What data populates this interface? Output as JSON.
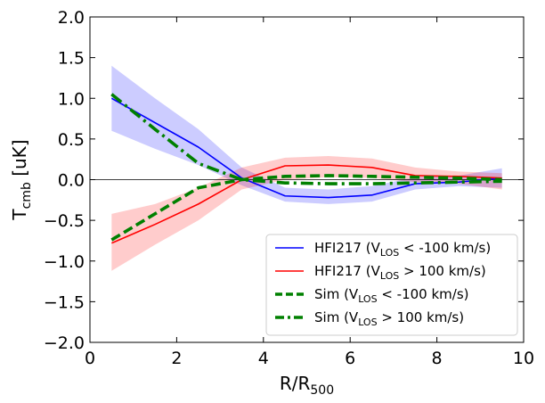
{
  "chart_data": {
    "type": "line",
    "title": "",
    "xlabel": {
      "base": "R/R",
      "sub": "500"
    },
    "ylabel": {
      "base": "T",
      "sub": "cmb",
      "rest": " [uK]"
    },
    "xlim": [
      0,
      10
    ],
    "ylim": [
      -2.0,
      2.0
    ],
    "x_ticks": [
      0,
      2,
      4,
      6,
      8,
      10
    ],
    "x_tick_labels": [
      "0",
      "2",
      "4",
      "6",
      "8",
      "10"
    ],
    "y_ticks": [
      -2.0,
      -1.5,
      -1.0,
      -0.5,
      0.0,
      0.5,
      1.0,
      1.5,
      2.0
    ],
    "y_tick_labels": [
      "−2.0",
      "−1.5",
      "−1.0",
      "−0.5",
      "0.0",
      "0.5",
      "1.0",
      "1.5",
      "2.0"
    ],
    "grid": false,
    "reference_line_y": 0,
    "legend_position": "lower right",
    "x": [
      0.5,
      1.5,
      2.5,
      3.5,
      4.5,
      5.5,
      6.5,
      7.5,
      8.5,
      9.5
    ],
    "series": [
      {
        "name": "HFI217 (V",
        "name_sub": "LOS",
        "name_rest": " < -100 km/s)",
        "color": "#0000ff",
        "style": "solid",
        "values": [
          1.0,
          0.7,
          0.4,
          0.02,
          -0.2,
          -0.22,
          -0.19,
          -0.05,
          -0.03,
          0.02
        ],
        "band_lower": [
          0.6,
          0.38,
          0.18,
          -0.07,
          -0.27,
          -0.3,
          -0.27,
          -0.12,
          -0.08,
          -0.1
        ],
        "band_upper": [
          1.4,
          1.0,
          0.62,
          0.15,
          -0.1,
          -0.12,
          -0.08,
          0.03,
          0.05,
          0.14
        ],
        "band_color": "#0000ff"
      },
      {
        "name": "HFI217 (V",
        "name_sub": "LOS",
        "name_rest": " > 100 km/s)",
        "color": "#ff0000",
        "style": "solid",
        "values": [
          -0.78,
          -0.55,
          -0.3,
          0.0,
          0.17,
          0.18,
          0.15,
          0.05,
          0.04,
          0.02
        ],
        "band_lower": [
          -1.12,
          -0.8,
          -0.5,
          -0.12,
          0.0,
          0.03,
          0.02,
          -0.03,
          -0.05,
          -0.12
        ],
        "band_upper": [
          -0.42,
          -0.3,
          -0.1,
          0.15,
          0.27,
          0.29,
          0.26,
          0.15,
          0.1,
          0.08
        ],
        "band_color": "#ff0000"
      },
      {
        "name": "Sim (V",
        "name_sub": "LOS",
        "name_rest": " < -100 km/s)",
        "color": "#008000",
        "style": "dashed",
        "values": [
          -0.74,
          -0.42,
          -0.1,
          0.0,
          0.04,
          0.05,
          0.04,
          0.03,
          0.02,
          0.0
        ]
      },
      {
        "name": "Sim (V",
        "name_sub": "LOS",
        "name_rest": " > 100 km/s)",
        "color": "#008000",
        "style": "dashdot",
        "values": [
          1.05,
          0.62,
          0.2,
          0.0,
          -0.04,
          -0.05,
          -0.05,
          -0.04,
          -0.03,
          -0.02
        ]
      }
    ]
  }
}
